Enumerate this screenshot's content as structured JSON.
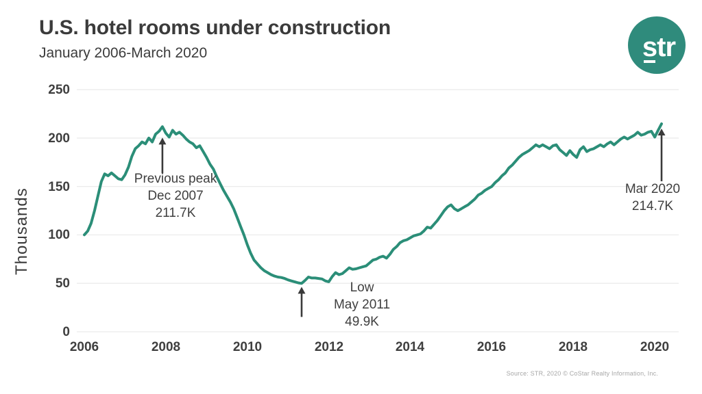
{
  "header": {
    "title": "U.S. hotel rooms under construction",
    "subtitle": "January 2006-March 2020",
    "logo_text": "str"
  },
  "colors": {
    "line": "#2b8e78",
    "logo": "#2f8b7c",
    "text": "#3f3f3f",
    "grid": "#ebebeb",
    "annotation_arrow": "#3a3a3a",
    "source_text": "#a6a6a6"
  },
  "chart_data": {
    "type": "line",
    "title": "U.S. hotel rooms under construction",
    "subtitle": "January 2006-March 2020",
    "ylabel": "Thousands",
    "xlabel": "",
    "ylim": [
      0,
      250
    ],
    "y_ticks": [
      0,
      50,
      100,
      150,
      200,
      250
    ],
    "x_ticks": [
      {
        "label": "2006",
        "month_index": 0
      },
      {
        "label": "2008",
        "month_index": 24
      },
      {
        "label": "2010",
        "month_index": 48
      },
      {
        "label": "2012",
        "month_index": 72
      },
      {
        "label": "2014",
        "month_index": 96
      },
      {
        "label": "2016",
        "month_index": 120
      },
      {
        "label": "2018",
        "month_index": 144
      },
      {
        "label": "2020",
        "month_index": 168
      }
    ],
    "x_series": "monthly, January 2006 through March 2020",
    "grid": "horizontal, faint",
    "legend": "none",
    "values": [
      100.1,
      104,
      112,
      125,
      140,
      155,
      163,
      161,
      164,
      161,
      158,
      157,
      162,
      170,
      181,
      189,
      192,
      196,
      194,
      200,
      196,
      204,
      207,
      211.7,
      205,
      201,
      208,
      204,
      206,
      203,
      199,
      196,
      194,
      190,
      192,
      186,
      180,
      173,
      168,
      160,
      153,
      146,
      140,
      134,
      127,
      118,
      109,
      100,
      90,
      81,
      74,
      70,
      66,
      63,
      61,
      59,
      57.5,
      56.5,
      56,
      55,
      53.5,
      52.5,
      51.5,
      50.5,
      49.9,
      53,
      56.5,
      55.5,
      55.5,
      55,
      54.5,
      52.5,
      51.6,
      57,
      61,
      59,
      60,
      63,
      66,
      64.5,
      65,
      66,
      67,
      68,
      71,
      74,
      75,
      77,
      78,
      76,
      80,
      85,
      88,
      92,
      94,
      95,
      97,
      99,
      100,
      101,
      104,
      108,
      107,
      111,
      115,
      120,
      125,
      129,
      131,
      127,
      125,
      127,
      129,
      131,
      134,
      137,
      141,
      143,
      146,
      148,
      150,
      154,
      157,
      161,
      164,
      169,
      172,
      176,
      180,
      183,
      185,
      187,
      190,
      193,
      191,
      193,
      191,
      189,
      192,
      193,
      188,
      185,
      182,
      187,
      183,
      180,
      188,
      191,
      186,
      188,
      189,
      191,
      193,
      191,
      194,
      196,
      193,
      196,
      199,
      201,
      199,
      201,
      203,
      206,
      203,
      204,
      206,
      207,
      201,
      208,
      214.7
    ],
    "annotations": [
      {
        "id": "previous-peak",
        "lines": [
          "Previous peak",
          "Dec 2007",
          "211.7K"
        ],
        "point": "Dec 2007",
        "value": 211.7,
        "month_index": 23
      },
      {
        "id": "low",
        "lines": [
          "Low",
          "May 2011",
          "49.9K"
        ],
        "point": "May 2011",
        "value": 49.9,
        "month_index": 64
      },
      {
        "id": "mar-2020",
        "lines": [
          "Mar 2020",
          "214.7K"
        ],
        "point": "Mar 2020",
        "value": 214.7,
        "month_index": 170
      }
    ]
  },
  "footer": {
    "source": "Source: STR, 2020 © CoStar Realty Information, Inc."
  }
}
